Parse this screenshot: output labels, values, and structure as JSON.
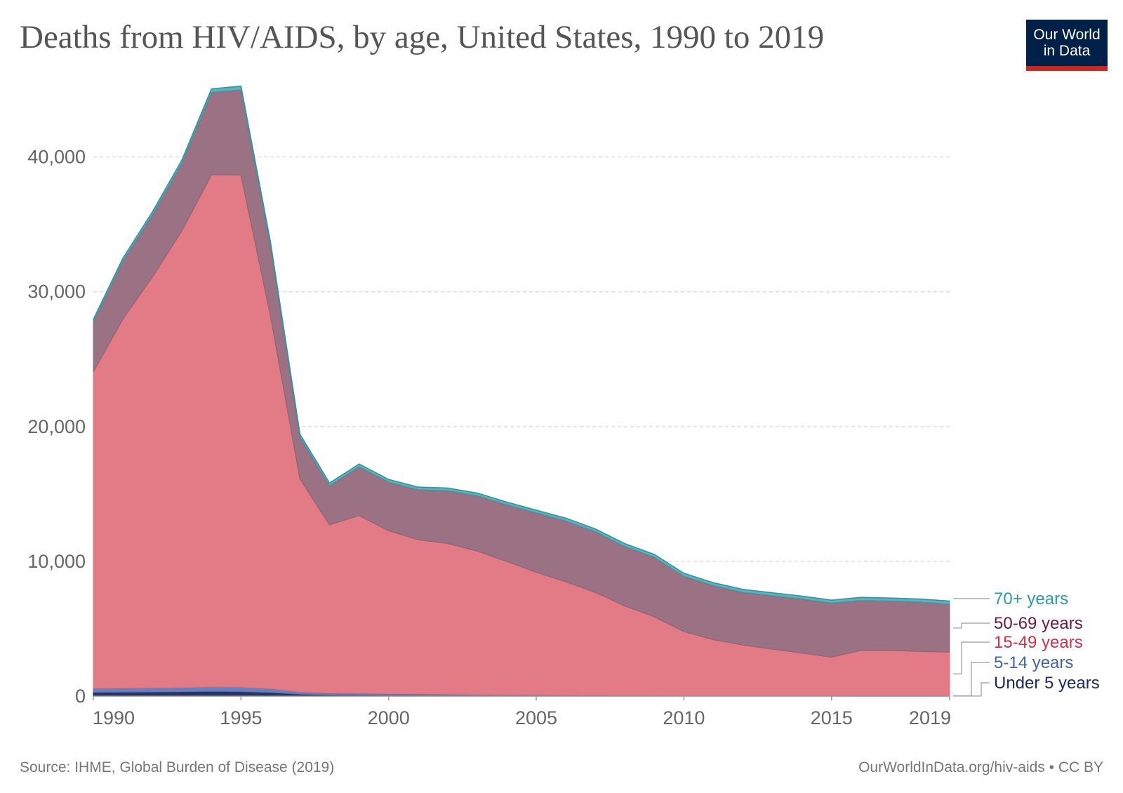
{
  "header": {
    "title": "Deaths from HIV/AIDS, by age, United States, 1990 to 2019",
    "logo_line1": "Our World",
    "logo_line2": "in Data"
  },
  "footer": {
    "source": "Source: IHME, Global Burden of Disease (2019)",
    "credit": "OurWorldInData.org/hiv-aids • CC BY"
  },
  "chart_data": {
    "type": "area",
    "title": "Deaths from HIV/AIDS, by age, United States, 1990 to 2019",
    "stacked": true,
    "x": [
      1990,
      1991,
      1992,
      1993,
      1994,
      1995,
      1996,
      1997,
      1998,
      1999,
      2000,
      2001,
      2002,
      2003,
      2004,
      2005,
      2006,
      2007,
      2008,
      2009,
      2010,
      2011,
      2012,
      2013,
      2014,
      2015,
      2016,
      2017,
      2018,
      2019
    ],
    "x_ticks": [
      "1990",
      "1995",
      "2000",
      "2005",
      "2010",
      "2015",
      "2019"
    ],
    "y_ticks": [
      "0",
      "10,000",
      "20,000",
      "30,000",
      "40,000"
    ],
    "ylim": [
      0,
      45500
    ],
    "grid": "horizontal dashed",
    "legend_placement": "right",
    "series": [
      {
        "name": "Under 5 years",
        "color": "#1a2a5e",
        "values": [
          300,
          310,
          320,
          340,
          370,
          350,
          290,
          160,
          110,
          100,
          80,
          70,
          60,
          50,
          40,
          35,
          30,
          28,
          25,
          22,
          20,
          18,
          16,
          15,
          14,
          13,
          12,
          12,
          11,
          10
        ]
      },
      {
        "name": "5-14 years",
        "color": "#5b7bbf",
        "values": [
          270,
          280,
          290,
          300,
          320,
          320,
          260,
          160,
          110,
          110,
          100,
          90,
          80,
          70,
          60,
          55,
          50,
          45,
          40,
          35,
          30,
          28,
          26,
          24,
          22,
          20,
          20,
          19,
          18,
          17
        ]
      },
      {
        "name": "15-49 years",
        "color": "#e07480",
        "values": [
          23500,
          27400,
          30500,
          33900,
          38000,
          38000,
          27700,
          15800,
          12500,
          13200,
          12100,
          11450,
          11200,
          10650,
          9900,
          9110,
          8420,
          7630,
          6640,
          5840,
          4750,
          4150,
          3760,
          3460,
          3170,
          2870,
          3370,
          3370,
          3300,
          3250
        ]
      },
      {
        "name": "50-69 years",
        "color": "#96697d",
        "values": [
          3700,
          4300,
          4600,
          5000,
          6100,
          6300,
          5200,
          3100,
          2900,
          3600,
          3600,
          3700,
          3900,
          4100,
          4200,
          4400,
          4500,
          4500,
          4400,
          4400,
          4100,
          4000,
          3900,
          3950,
          4000,
          4000,
          3700,
          3650,
          3650,
          3550
        ]
      },
      {
        "name": "70+ years",
        "color": "#3fa5b0",
        "values": [
          180,
          200,
          220,
          240,
          260,
          290,
          240,
          200,
          200,
          210,
          200,
          200,
          200,
          200,
          200,
          200,
          210,
          210,
          210,
          220,
          220,
          220,
          220,
          220,
          220,
          220,
          230,
          230,
          230,
          230
        ]
      }
    ]
  }
}
